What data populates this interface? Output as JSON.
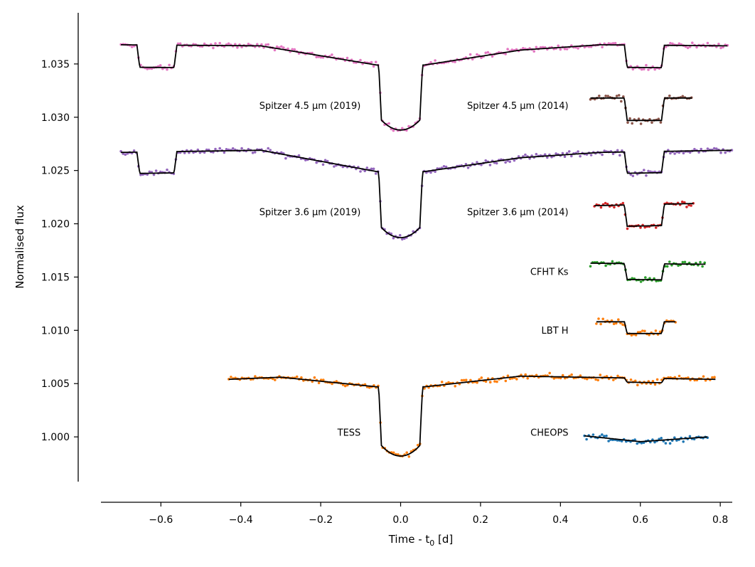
{
  "chart_data": {
    "type": "scatter",
    "title": "",
    "xlabel": "Time - t",
    "xlabel_sub": "0",
    "xlabel_unit": " [d]",
    "ylabel": "Normalised flux",
    "xlim": [
      -0.75,
      0.83
    ],
    "ylim": [
      0.9958,
      1.0398
    ],
    "xticks": [
      -0.6,
      -0.4,
      -0.2,
      0.0,
      0.2,
      0.4,
      0.6,
      0.8
    ],
    "xtick_labels": [
      "−0.6",
      "−0.4",
      "−0.2",
      "0.0",
      "0.2",
      "0.4",
      "0.6",
      "0.8"
    ],
    "yticks": [
      1.0,
      1.005,
      1.01,
      1.015,
      1.02,
      1.025,
      1.03,
      1.035
    ],
    "ytick_labels": [
      "1.000",
      "1.005",
      "1.010",
      "1.015",
      "1.020",
      "1.025",
      "1.030",
      "1.035"
    ],
    "grid": false,
    "legend": "none",
    "series": [
      {
        "label": "TESS",
        "color": "#ff7f0e",
        "x_range": [
          -0.43,
          0.79
        ],
        "base": 1.0055,
        "trend": [
          [
            -0.43,
            1.0054
          ],
          [
            -0.3,
            1.0056
          ],
          [
            -0.06,
            1.0047
          ],
          [
            0.06,
            1.0047
          ],
          [
            0.3,
            1.0057
          ],
          [
            0.45,
            1.0056
          ],
          [
            0.79,
            1.0054
          ]
        ],
        "transits": [
          {
            "t0": 0.0,
            "depth": 0.0065,
            "halfwidth": 0.055,
            "shape": "curved"
          },
          {
            "t0": 0.61,
            "depth": 0.0004,
            "halfwidth": 0.05,
            "shape": "flat"
          }
        ]
      },
      {
        "label": "CHEOPS",
        "color": "#1f77b4",
        "x_range": [
          0.46,
          0.77
        ],
        "base": 1.0,
        "trend": [
          [
            0.46,
            1.0001
          ],
          [
            0.6,
            0.99955
          ],
          [
            0.77,
            1.0
          ]
        ],
        "transits": []
      },
      {
        "label": "LBT H",
        "color": "#ff7f0e",
        "x_range": [
          0.49,
          0.69
        ],
        "base": 1.0108,
        "trend": [
          [
            0.49,
            1.0108
          ],
          [
            0.69,
            1.0108
          ]
        ],
        "transits": [
          {
            "t0": 0.61,
            "depth": 0.0011,
            "halfwidth": 0.05,
            "shape": "flat"
          }
        ]
      },
      {
        "label": "CFHT Ks",
        "color": "#2ca02c",
        "x_range": [
          0.475,
          0.765
        ],
        "base": 1.0162,
        "trend": [
          [
            0.475,
            1.0163
          ],
          [
            0.765,
            1.0162
          ]
        ],
        "transits": [
          {
            "t0": 0.61,
            "depth": 0.0015,
            "halfwidth": 0.05,
            "shape": "flat"
          }
        ]
      },
      {
        "label": "Spitzer 3.6 μm (2014)",
        "color": "#d62728",
        "x_range": [
          0.485,
          0.735
        ],
        "base": 1.0218,
        "trend": [
          [
            0.485,
            1.0217
          ],
          [
            0.735,
            1.0219
          ]
        ],
        "transits": [
          {
            "t0": 0.61,
            "depth": 0.002,
            "halfwidth": 0.05,
            "shape": "flat"
          }
        ]
      },
      {
        "label": "Spitzer 3.6 μm (2019)",
        "color": "#9467bd",
        "x_range": [
          -0.7,
          0.83
        ],
        "base": 1.0268,
        "trend": [
          [
            -0.7,
            1.0267
          ],
          [
            -0.35,
            1.0269
          ],
          [
            -0.06,
            1.0249
          ],
          [
            0.06,
            1.0249
          ],
          [
            0.3,
            1.0262
          ],
          [
            0.5,
            1.0267
          ],
          [
            0.83,
            1.0269
          ]
        ],
        "transits": [
          {
            "t0": -0.61,
            "depth": 0.002,
            "halfwidth": 0.05,
            "shape": "flat"
          },
          {
            "t0": 0.0,
            "depth": 0.0062,
            "halfwidth": 0.055,
            "shape": "curved"
          },
          {
            "t0": 0.61,
            "depth": 0.002,
            "halfwidth": 0.05,
            "shape": "flat"
          }
        ]
      },
      {
        "label": "Spitzer 4.5 μm (2014)",
        "color": "#8c564b",
        "x_range": [
          0.475,
          0.73
        ],
        "base": 1.0318,
        "trend": [
          [
            0.475,
            1.0318
          ],
          [
            0.73,
            1.0318
          ]
        ],
        "transits": [
          {
            "t0": 0.61,
            "depth": 0.0021,
            "halfwidth": 0.05,
            "shape": "flat"
          }
        ]
      },
      {
        "label": "Spitzer 4.5 μm (2019)",
        "color": "#e377c2",
        "x_range": [
          -0.7,
          0.82
        ],
        "base": 1.0368,
        "trend": [
          [
            -0.7,
            1.0368
          ],
          [
            -0.35,
            1.0367
          ],
          [
            -0.06,
            1.0349
          ],
          [
            0.06,
            1.0349
          ],
          [
            0.3,
            1.0363
          ],
          [
            0.5,
            1.0368
          ],
          [
            0.82,
            1.0367
          ]
        ],
        "transits": [
          {
            "t0": -0.61,
            "depth": 0.0021,
            "halfwidth": 0.05,
            "shape": "flat"
          },
          {
            "t0": 0.0,
            "depth": 0.0061,
            "halfwidth": 0.055,
            "shape": "curved"
          },
          {
            "t0": 0.61,
            "depth": 0.0021,
            "halfwidth": 0.05,
            "shape": "flat"
          }
        ]
      }
    ],
    "annotations": [
      {
        "text": "Spitzer 4.5 μm (2019)",
        "x": -0.1,
        "y": 1.0308,
        "anchor": "end"
      },
      {
        "text": "Spitzer 4.5 μm (2014)",
        "x": 0.42,
        "y": 1.0308,
        "anchor": "end"
      },
      {
        "text": "Spitzer 3.6 μm (2019)",
        "x": -0.1,
        "y": 1.0208,
        "anchor": "end"
      },
      {
        "text": "Spitzer 3.6 μm (2014)",
        "x": 0.42,
        "y": 1.0208,
        "anchor": "end"
      },
      {
        "text": "CFHT Ks",
        "x": 0.42,
        "y": 1.0152,
        "anchor": "end"
      },
      {
        "text": "LBT H",
        "x": 0.42,
        "y": 1.0097,
        "anchor": "end"
      },
      {
        "text": "TESS",
        "x": -0.1,
        "y": 1.0001,
        "anchor": "end"
      },
      {
        "text": "CHEOPS",
        "x": 0.42,
        "y": 1.0001,
        "anchor": "end"
      }
    ]
  }
}
